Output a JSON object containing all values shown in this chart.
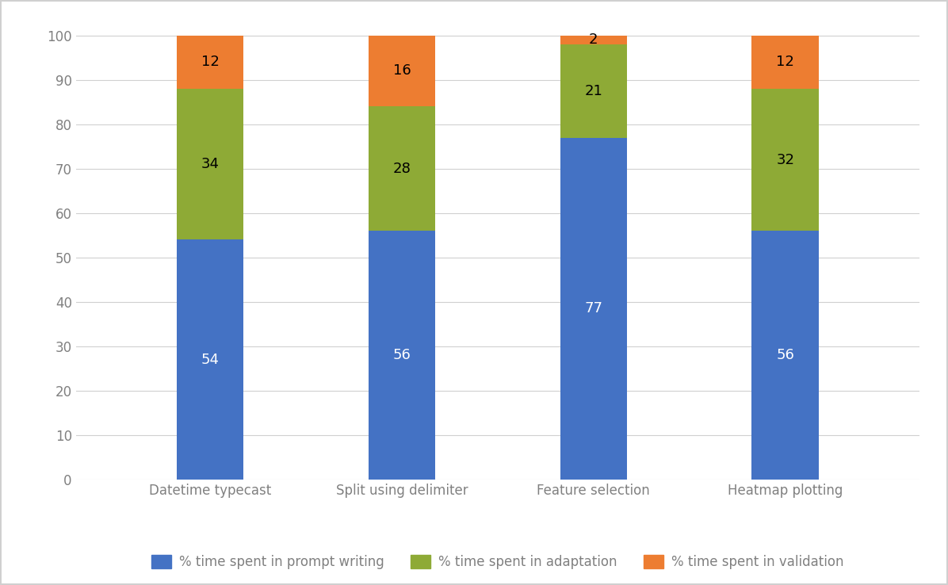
{
  "categories": [
    "Datetime typecast",
    "Split using delimiter",
    "Feature selection",
    "Heatmap plotting"
  ],
  "prompt_writing": [
    54,
    56,
    77,
    56
  ],
  "adaptation": [
    34,
    28,
    21,
    32
  ],
  "validation": [
    12,
    16,
    2,
    12
  ],
  "color_prompt": "#4472C4",
  "color_adaptation": "#8EAA36",
  "color_validation": "#ED7D31",
  "ylabel_ticks": [
    0,
    10,
    20,
    30,
    40,
    50,
    60,
    70,
    80,
    90,
    100
  ],
  "ylim": [
    0,
    104
  ],
  "legend_labels": [
    "% time spent in prompt writing",
    "% time spent in adaptation",
    "% time spent in validation"
  ],
  "background_color": "#ffffff",
  "outer_border_color": "#d0d0d0",
  "grid_color": "#d0d0d0",
  "tick_color": "#808080",
  "label_fontsize": 12,
  "tick_fontsize": 12,
  "legend_fontsize": 12,
  "bar_width": 0.35,
  "value_fontsize": 13
}
